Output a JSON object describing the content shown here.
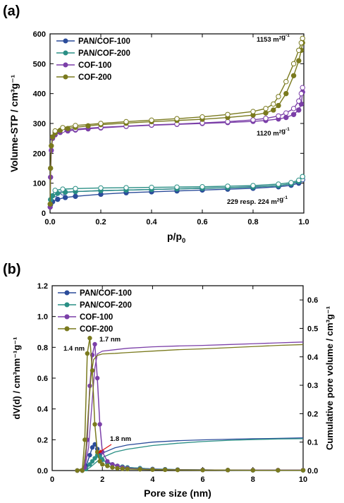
{
  "panels": {
    "a": {
      "label": "(a)"
    },
    "b": {
      "label": "(b)"
    }
  },
  "chart_data": [
    {
      "type": "line",
      "panel_label": "(a)",
      "xlabel": "p/p",
      "xlabel_sub": "0",
      "ylabel": "Volume-STP / cm³g⁻¹",
      "xlim": [
        0.0,
        1.0
      ],
      "ylim": [
        0,
        600
      ],
      "xticks": [
        0.0,
        0.2,
        0.4,
        0.6,
        0.8,
        1.0
      ],
      "xtick_labels": [
        "0.0",
        "0.2",
        "0.4",
        "0.6",
        "0.8",
        "1.0"
      ],
      "yticks": [
        0,
        100,
        200,
        300,
        400,
        500,
        600
      ],
      "ytick_labels": [
        "0",
        "100",
        "200",
        "300",
        "400",
        "500",
        "600"
      ],
      "legend_position": "top-left",
      "annotations": [
        {
          "text": "1153 m²g⁻¹",
          "near": "COF-200 top"
        },
        {
          "text": "1120 m²g⁻¹",
          "near": "COF-100"
        },
        {
          "text": "229 resp. 224 m²g⁻¹",
          "near": "PAN/COF"
        }
      ],
      "series": [
        {
          "name": "PAN/COF-100",
          "color": "#2b4c9a",
          "marker": "circle",
          "adsorption": {
            "x": [
              0.002,
              0.01,
              0.03,
              0.06,
              0.1,
              0.2,
              0.3,
              0.4,
              0.5,
              0.6,
              0.7,
              0.8,
              0.9,
              0.95,
              0.98,
              0.995
            ],
            "y": [
              28,
              38,
              46,
              52,
              56,
              63,
              68,
              71,
              74,
              77,
              80,
              83,
              88,
              93,
              100,
              112
            ]
          },
          "desorption": {
            "x": [
              0.995,
              0.98,
              0.95,
              0.9,
              0.8,
              0.7,
              0.6,
              0.5,
              0.4,
              0.3,
              0.2,
              0.1,
              0.05,
              0.02
            ],
            "y": [
              112,
              104,
              98,
              92,
              88,
              85,
              83,
              81,
              79,
              77,
              75,
              72,
              68,
              62
            ]
          }
        },
        {
          "name": "PAN/COF-200",
          "color": "#2a8f85",
          "marker": "circle",
          "adsorption": {
            "x": [
              0.002,
              0.01,
              0.03,
              0.06,
              0.1,
              0.2,
              0.3,
              0.4,
              0.5,
              0.6,
              0.7,
              0.8,
              0.9,
              0.95,
              0.98,
              0.995
            ],
            "y": [
              45,
              58,
              66,
              70,
              72,
              75,
              77,
              79,
              81,
              83,
              85,
              87,
              92,
              98,
              106,
              122
            ]
          },
          "desorption": {
            "x": [
              0.995,
              0.98,
              0.95,
              0.9,
              0.8,
              0.7,
              0.6,
              0.5,
              0.4,
              0.3,
              0.2,
              0.1,
              0.05,
              0.02
            ],
            "y": [
              122,
              110,
              102,
              97,
              92,
              90,
              88,
              87,
              86,
              85,
              84,
              82,
              80,
              76
            ]
          }
        },
        {
          "name": "COF-100",
          "color": "#7b3fa8",
          "marker": "circle",
          "adsorption": {
            "x": [
              0.0005,
              0.002,
              0.005,
              0.01,
              0.02,
              0.04,
              0.07,
              0.1,
              0.15,
              0.2,
              0.3,
              0.4,
              0.5,
              0.6,
              0.7,
              0.8,
              0.85,
              0.9,
              0.93,
              0.96,
              0.98,
              0.99,
              0.995
            ],
            "y": [
              20,
              120,
              210,
              250,
              262,
              270,
              275,
              278,
              282,
              285,
              290,
              294,
              297,
              300,
              303,
              307,
              310,
              315,
              320,
              330,
              345,
              365,
              405
            ]
          },
          "desorption": {
            "x": [
              0.995,
              0.99,
              0.98,
              0.96,
              0.93,
              0.9,
              0.85,
              0.8,
              0.7,
              0.6,
              0.5,
              0.4,
              0.3,
              0.2,
              0.1,
              0.05,
              0.02
            ],
            "y": [
              420,
              400,
              375,
              350,
              335,
              325,
              317,
              312,
              306,
              302,
              298,
              295,
              291,
              287,
              281,
              277,
              270
            ]
          }
        },
        {
          "name": "COF-200",
          "color": "#7a7a1e",
          "marker": "circle",
          "adsorption": {
            "x": [
              0.0005,
              0.002,
              0.005,
              0.01,
              0.02,
              0.04,
              0.07,
              0.1,
              0.15,
              0.2,
              0.3,
              0.4,
              0.5,
              0.6,
              0.7,
              0.8,
              0.85,
              0.88,
              0.9,
              0.93,
              0.96,
              0.98,
              0.99,
              0.995
            ],
            "y": [
              30,
              150,
              225,
              255,
              268,
              277,
              283,
              287,
              292,
              296,
              301,
              306,
              310,
              314,
              320,
              328,
              335,
              345,
              360,
              400,
              460,
              510,
              545,
              570
            ]
          },
          "desorption": {
            "x": [
              0.995,
              0.99,
              0.98,
              0.96,
              0.93,
              0.9,
              0.88,
              0.85,
              0.8,
              0.7,
              0.6,
              0.5,
              0.4,
              0.3,
              0.2,
              0.1,
              0.05,
              0.02
            ],
            "y": [
              585,
              570,
              545,
              500,
              440,
              390,
              365,
              350,
              340,
              330,
              322,
              316,
              311,
              306,
              300,
              293,
              286,
              275
            ]
          }
        }
      ]
    },
    {
      "type": "line",
      "panel_label": "(b)",
      "xlabel": "Pore size (nm)",
      "ylabel": "dV(d) / cm³nm⁻¹g⁻¹",
      "y2label": "Cumulative pore volume / cm³g⁻¹",
      "xlim": [
        0,
        10
      ],
      "ylim": [
        0.0,
        1.2
      ],
      "y2lim": [
        0.0,
        0.65
      ],
      "xticks": [
        0,
        2,
        4,
        6,
        8,
        10
      ],
      "xtick_labels": [
        "0",
        "2",
        "4",
        "6",
        "8",
        "10"
      ],
      "yticks": [
        0.0,
        0.2,
        0.4,
        0.6,
        0.8,
        1.0,
        1.2
      ],
      "ytick_labels": [
        "0.0",
        "0.2",
        "0.4",
        "0.6",
        "0.8",
        "1.0",
        "1.2"
      ],
      "y2ticks": [
        0.0,
        0.1,
        0.2,
        0.3,
        0.4,
        0.5,
        0.6
      ],
      "y2tick_labels": [
        "0.0",
        "0.1",
        "0.2",
        "0.3",
        "0.4",
        "0.5",
        "0.6"
      ],
      "legend_position": "top-left",
      "annotations": [
        {
          "text": "1.4 nm",
          "x": 1.4
        },
        {
          "text": "1.7 nm",
          "x": 1.7
        },
        {
          "text": "1.8 nm",
          "x": 1.8
        }
      ],
      "series": [
        {
          "name": "PAN/COF-100",
          "color": "#2b4c9a",
          "marker": "circle",
          "x": [
            1.0,
            1.2,
            1.35,
            1.5,
            1.6,
            1.7,
            1.8,
            1.9,
            2.0,
            2.2,
            2.4,
            2.6,
            2.8,
            3.0,
            3.5,
            4.0,
            4.5,
            5.0,
            6.0,
            7.0,
            8.0,
            9.0,
            10.0
          ],
          "y": [
            0.0,
            0.0,
            0.03,
            0.1,
            0.15,
            0.17,
            0.14,
            0.1,
            0.07,
            0.05,
            0.04,
            0.03,
            0.025,
            0.02,
            0.015,
            0.01,
            0.008,
            0.006,
            0.004,
            0.003,
            0.002,
            0.002,
            0.002
          ],
          "cumulative": {
            "x": [
              1.0,
              1.3,
              1.5,
              1.7,
              1.9,
              2.1,
              2.5,
              3.0,
              4.0,
              5.0,
              6.0,
              7.0,
              8.0,
              9.0,
              10.0
            ],
            "y": [
              0.0,
              0.005,
              0.02,
              0.04,
              0.055,
              0.065,
              0.08,
              0.09,
              0.1,
              0.105,
              0.108,
              0.11,
              0.112,
              0.113,
              0.115
            ]
          }
        },
        {
          "name": "PAN/COF-200",
          "color": "#2a8f85",
          "marker": "circle",
          "x": [
            1.0,
            1.2,
            1.35,
            1.5,
            1.6,
            1.7,
            1.8,
            1.9,
            2.0,
            2.2,
            2.4,
            2.6,
            2.8,
            3.0,
            3.5,
            4.0,
            4.5,
            5.0,
            6.0,
            7.0,
            8.0,
            9.0,
            10.0
          ],
          "y": [
            0.0,
            0.0,
            0.01,
            0.04,
            0.06,
            0.08,
            0.1,
            0.09,
            0.07,
            0.05,
            0.04,
            0.03,
            0.025,
            0.02,
            0.015,
            0.01,
            0.008,
            0.006,
            0.004,
            0.003,
            0.002,
            0.002,
            0.002
          ],
          "cumulative": {
            "x": [
              1.0,
              1.3,
              1.5,
              1.7,
              1.9,
              2.1,
              2.5,
              3.0,
              4.0,
              5.0,
              6.0,
              7.0,
              8.0,
              9.0,
              10.0
            ],
            "y": [
              0.0,
              0.003,
              0.01,
              0.025,
              0.04,
              0.05,
              0.065,
              0.075,
              0.088,
              0.096,
              0.102,
              0.106,
              0.109,
              0.111,
              0.112
            ]
          }
        },
        {
          "name": "COF-100",
          "color": "#7b3fa8",
          "marker": "circle",
          "x": [
            1.0,
            1.2,
            1.3,
            1.4,
            1.5,
            1.6,
            1.7,
            1.8,
            1.9,
            2.0,
            2.2,
            2.4,
            2.6,
            2.8,
            3.0,
            3.5,
            4.0,
            4.5,
            5.0,
            6.0,
            7.0,
            8.0,
            9.0,
            10.0
          ],
          "y": [
            0.0,
            0.0,
            0.02,
            0.2,
            0.55,
            0.75,
            0.82,
            0.6,
            0.3,
            0.12,
            0.06,
            0.04,
            0.03,
            0.02,
            0.015,
            0.01,
            0.008,
            0.006,
            0.005,
            0.004,
            0.003,
            0.003,
            0.003,
            0.003
          ],
          "cumulative": {
            "x": [
              1.0,
              1.3,
              1.45,
              1.6,
              1.7,
              1.8,
              2.0,
              2.5,
              3.0,
              4.0,
              5.0,
              6.0,
              7.0,
              8.0,
              9.0,
              10.0
            ],
            "y": [
              0.0,
              0.01,
              0.08,
              0.25,
              0.36,
              0.41,
              0.42,
              0.425,
              0.43,
              0.435,
              0.438,
              0.44,
              0.443,
              0.446,
              0.449,
              0.452
            ]
          }
        },
        {
          "name": "COF-200",
          "color": "#7a7a1e",
          "marker": "circle",
          "x": [
            1.0,
            1.2,
            1.3,
            1.4,
            1.5,
            1.6,
            1.7,
            1.8,
            1.9,
            2.0,
            2.2,
            2.4,
            2.6,
            2.8,
            3.0,
            3.5,
            4.0,
            4.5,
            5.0,
            6.0,
            7.0,
            8.0,
            9.0,
            10.0
          ],
          "y": [
            0.0,
            0.0,
            0.2,
            0.76,
            0.86,
            0.65,
            0.3,
            0.12,
            0.06,
            0.04,
            0.03,
            0.02,
            0.015,
            0.012,
            0.01,
            0.008,
            0.006,
            0.005,
            0.004,
            0.003,
            0.003,
            0.002,
            0.002,
            0.002
          ],
          "cumulative": {
            "x": [
              1.0,
              1.25,
              1.35,
              1.45,
              1.55,
              1.65,
              1.8,
              2.0,
              2.5,
              3.0,
              4.0,
              5.0,
              6.0,
              7.0,
              8.0,
              9.0,
              10.0
            ],
            "y": [
              0.0,
              0.01,
              0.08,
              0.22,
              0.33,
              0.39,
              0.405,
              0.41,
              0.412,
              0.415,
              0.42,
              0.425,
              0.428,
              0.432,
              0.436,
              0.44,
              0.443
            ]
          }
        }
      ]
    }
  ]
}
